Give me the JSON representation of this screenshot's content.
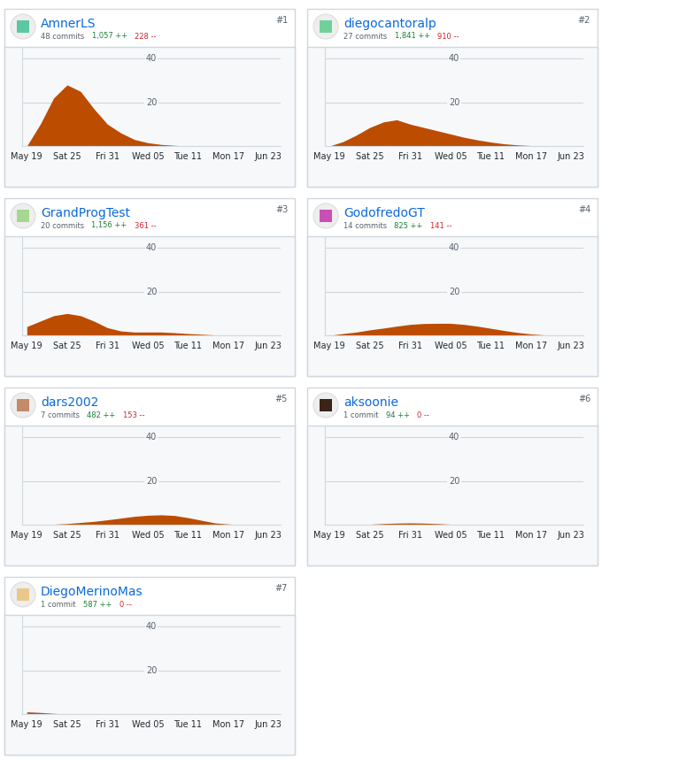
{
  "chart_data": [
    {
      "type": "area",
      "title": "AmnerLS",
      "rank": "#1",
      "commits": "48 commits",
      "additions": "1,057 ++",
      "deletions": "228 --",
      "categories": [
        "May 19",
        null,
        null,
        "Sat 25",
        null,
        null,
        "Fri 31",
        null,
        null,
        "Wed 05",
        null,
        null,
        "Tue 11",
        null,
        null,
        "Mon 17",
        null,
        null,
        "Jun 23"
      ],
      "values": [
        0,
        10,
        22,
        28,
        25,
        17,
        10,
        6,
        3,
        1.5,
        0.7,
        0.3,
        0,
        0,
        0,
        0,
        0,
        0,
        0
      ],
      "color": "#bc4c00",
      "ylim": [
        0,
        45
      ],
      "yticks": [
        20,
        40
      ],
      "grid": true
    },
    {
      "type": "area",
      "title": "diegocantoralp",
      "rank": "#2",
      "commits": "27 commits",
      "additions": "1,841 ++",
      "deletions": "910 --",
      "categories": [
        "May 19",
        null,
        null,
        "Sat 25",
        null,
        null,
        "Fri 31",
        null,
        null,
        "Wed 05",
        null,
        null,
        "Tue 11",
        null,
        null,
        "Mon 17",
        null,
        null,
        "Jun 23"
      ],
      "values": [
        0,
        2,
        5,
        8.5,
        11,
        12,
        10,
        8.5,
        7,
        5.5,
        4,
        2.8,
        1.8,
        1,
        0.5,
        0.2,
        0,
        0,
        0
      ],
      "color": "#bc4c00",
      "ylim": [
        0,
        45
      ],
      "yticks": [
        20,
        40
      ],
      "grid": true
    },
    {
      "type": "area",
      "title": "GrandProgTest",
      "rank": "#3",
      "commits": "20 commits",
      "additions": "1,156 ++",
      "deletions": "361 --",
      "categories": [
        "May 19",
        null,
        null,
        "Sat 25",
        null,
        null,
        "Fri 31",
        null,
        null,
        "Wed 05",
        null,
        null,
        "Tue 11",
        null,
        null,
        "Mon 17",
        null,
        null,
        "Jun 23"
      ],
      "values": [
        4,
        6.5,
        9,
        10,
        9,
        6.5,
        3.5,
        2,
        1.5,
        1.5,
        1.5,
        1.2,
        0.8,
        0.5,
        0.2,
        0,
        0,
        0,
        0
      ],
      "color": "#bc4c00",
      "ylim": [
        0,
        45
      ],
      "yticks": [
        20,
        40
      ],
      "grid": true
    },
    {
      "type": "area",
      "title": "GodofredoGT",
      "rank": "#4",
      "commits": "14 commits",
      "additions": "825 ++",
      "deletions": "141 --",
      "categories": [
        "May 19",
        null,
        null,
        "Sat 25",
        null,
        null,
        "Fri 31",
        null,
        null,
        "Wed 05",
        null,
        null,
        "Tue 11",
        null,
        null,
        "Mon 17",
        null,
        null,
        "Jun 23"
      ],
      "values": [
        0,
        0.8,
        1.5,
        2.5,
        3.3,
        4.2,
        5,
        5.4,
        5.5,
        5.5,
        5,
        4.2,
        3.2,
        2.2,
        1.3,
        0.6,
        0.2,
        0,
        0
      ],
      "color": "#bc4c00",
      "ylim": [
        0,
        45
      ],
      "yticks": [
        20,
        40
      ],
      "grid": true
    },
    {
      "type": "area",
      "title": "dars2002",
      "rank": "#5",
      "commits": "7 commits",
      "additions": "482 ++",
      "deletions": "153 --",
      "categories": [
        "May 19",
        null,
        null,
        "Sat 25",
        null,
        null,
        "Fri 31",
        null,
        null,
        "Wed 05",
        null,
        null,
        "Tue 11",
        null,
        null,
        "Mon 17",
        null,
        null,
        "Jun 23"
      ],
      "values": [
        0,
        0,
        0.2,
        0.5,
        1,
        1.5,
        2.2,
        3,
        3.8,
        4.3,
        4.5,
        4.2,
        3.2,
        2,
        0.8,
        0.3,
        0,
        0,
        0
      ],
      "color": "#bc4c00",
      "ylim": [
        0,
        45
      ],
      "yticks": [
        20,
        40
      ],
      "grid": true
    },
    {
      "type": "area",
      "title": "aksoonie",
      "rank": "#6",
      "commits": "1 commit",
      "additions": "94 ++",
      "deletions": "0 --",
      "categories": [
        "May 19",
        null,
        null,
        "Sat 25",
        null,
        null,
        "Fri 31",
        null,
        null,
        "Wed 05",
        null,
        null,
        "Tue 11",
        null,
        null,
        "Mon 17",
        null,
        null,
        "Jun 23"
      ],
      "values": [
        0,
        0,
        0,
        0.2,
        0.5,
        0.7,
        0.8,
        0.7,
        0.5,
        0.2,
        0,
        0,
        0,
        0,
        0,
        0,
        0,
        0,
        0
      ],
      "color": "#bc4c00",
      "ylim": [
        0,
        45
      ],
      "yticks": [
        20,
        40
      ],
      "grid": true
    },
    {
      "type": "area",
      "title": "DiegoMerinoMas",
      "rank": "#7",
      "commits": "1 commit",
      "additions": "587 ++",
      "deletions": "0 --",
      "categories": [
        "May 19",
        null,
        null,
        "Sat 25",
        null,
        null,
        "Fri 31",
        null,
        null,
        "Wed 05",
        null,
        null,
        "Tue 11",
        null,
        null,
        "Mon 17",
        null,
        null,
        "Jun 23"
      ],
      "values": [
        1,
        0.7,
        0.3,
        0,
        0,
        0,
        0,
        0,
        0,
        0,
        0,
        0,
        0,
        0,
        0,
        0,
        0,
        0,
        0
      ],
      "color": "#bc4c00",
      "ylim": [
        0,
        45
      ],
      "yticks": [
        20,
        40
      ],
      "grid": true
    }
  ]
}
